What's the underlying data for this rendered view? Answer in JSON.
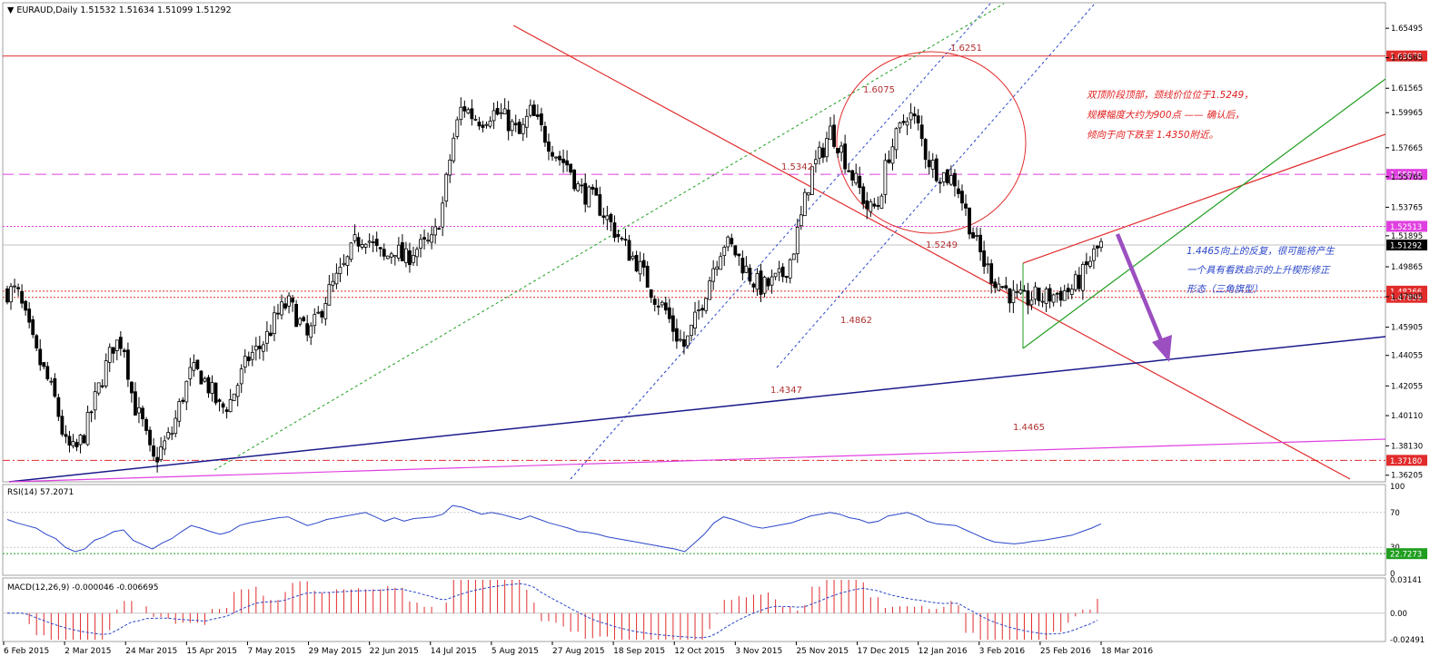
{
  "chart_data": [
    {
      "type": "candlestick",
      "title": "EURAUD,Daily",
      "ohlc_header": [
        "1.51532",
        "1.51634",
        "1.51099",
        "1.51292"
      ],
      "ylim": [
        1.3595,
        1.6705
      ],
      "price_ticks": [
        "1.65495",
        "1.63565",
        "1.61565",
        "1.59965",
        "1.57665",
        "1.55765",
        "1.53765",
        "1.51895",
        "1.49865",
        "1.47905",
        "1.45905",
        "1.44055",
        "1.42055",
        "1.40110",
        "1.38130",
        "1.36205"
      ],
      "x_labels": [
        "6 Feb 2015",
        "2 Mar 2015",
        "24 Mar 2015",
        "15 Apr 2015",
        "7 May 2015",
        "29 May 2015",
        "22 Jun 2015",
        "14 Jul 2015",
        "5 Aug 2015",
        "27 Aug 2015",
        "18 Sep 2015",
        "12 Oct 2015",
        "3 Nov 2015",
        "25 Nov 2015",
        "17 Dec 2015",
        "12 Jan 2016",
        "3 Feb 2016",
        "25 Feb 2016",
        "18 Mar 2016"
      ],
      "close_series": [
        1.4825,
        1.4825,
        1.462,
        1.441,
        1.427,
        1.41,
        1.382,
        1.377,
        1.39,
        1.41,
        1.43,
        1.448,
        1.45,
        1.41,
        1.395,
        1.37,
        1.38,
        1.39,
        1.412,
        1.43,
        1.428,
        1.418,
        1.405,
        1.41,
        1.425,
        1.44,
        1.445,
        1.455,
        1.468,
        1.475,
        1.465,
        1.452,
        1.464,
        1.48,
        1.49,
        1.5,
        1.515,
        1.52,
        1.51,
        1.503,
        1.512,
        1.502,
        1.51,
        1.512,
        1.515,
        1.54,
        1.58,
        1.605,
        1.598,
        1.595,
        1.6,
        1.598,
        1.592,
        1.584,
        1.6,
        1.59,
        1.58,
        1.57,
        1.565,
        1.55,
        1.545,
        1.54,
        1.53,
        1.52,
        1.51,
        1.502,
        1.49,
        1.478,
        1.47,
        1.455,
        1.446,
        1.462,
        1.48,
        1.5,
        1.515,
        1.51,
        1.5,
        1.49,
        1.485,
        1.488,
        1.492,
        1.505,
        1.53,
        1.56,
        1.572,
        1.588,
        1.578,
        1.562,
        1.55,
        1.535,
        1.54,
        1.572,
        1.585,
        1.6,
        1.592,
        1.57,
        1.562,
        1.558,
        1.555,
        1.535,
        1.515,
        1.5,
        1.49,
        1.485,
        1.478,
        1.476,
        1.479,
        1.478,
        1.48,
        1.482,
        1.484,
        1.492,
        1.505,
        1.5129
      ],
      "horizontal_levels": [
        {
          "value": 1.63678,
          "label": "1.63678",
          "color": "#e12c2c",
          "style": "solid"
        },
        {
          "value": 1.55919,
          "label": "1.55919",
          "color": "#e040e0",
          "style": "dashed"
        },
        {
          "value": 1.52513,
          "label": "1.52513",
          "color": "#e040e0",
          "style": "dotted"
        },
        {
          "value": 1.51292,
          "label": "1.51292",
          "color": "#000000",
          "style": "current"
        },
        {
          "value": 1.48266,
          "label": "1.48266",
          "color": "#e12c2c",
          "style": "dotted"
        },
        {
          "value": 1.47859,
          "label": "1.47859",
          "color": "#e12c2c",
          "style": "dotted"
        },
        {
          "value": 1.3718,
          "label": "1.37180",
          "color": "#e12c2c",
          "style": "dashdot"
        }
      ],
      "price_annotations": [
        "1.6251",
        "1.6075",
        "1.5342",
        "1.5249",
        "1.4862",
        "1.4347",
        "1.4465"
      ]
    },
    {
      "type": "line",
      "title": "RSI(14) 57.2071",
      "ylim": [
        0,
        100
      ],
      "ticks": [
        "100",
        "70",
        "30",
        "0"
      ],
      "level_label": "22.7273",
      "values": [
        62,
        58,
        55,
        52,
        45,
        40,
        30,
        25,
        28,
        38,
        42,
        48,
        50,
        38,
        33,
        28,
        35,
        40,
        48,
        55,
        52,
        48,
        45,
        48,
        55,
        58,
        60,
        62,
        64,
        65,
        60,
        55,
        58,
        62,
        64,
        66,
        68,
        70,
        65,
        60,
        64,
        60,
        63,
        64,
        65,
        68,
        78,
        76,
        72,
        68,
        70,
        68,
        65,
        62,
        66,
        62,
        58,
        55,
        52,
        48,
        47,
        45,
        42,
        40,
        38,
        36,
        34,
        32,
        30,
        28,
        25,
        35,
        45,
        58,
        65,
        62,
        58,
        54,
        52,
        54,
        56,
        58,
        62,
        66,
        68,
        70,
        68,
        64,
        62,
        58,
        60,
        66,
        68,
        70,
        66,
        60,
        57,
        56,
        55,
        50,
        45,
        40,
        36,
        35,
        34,
        35,
        37,
        38,
        40,
        42,
        44,
        48,
        52,
        57
      ]
    },
    {
      "type": "bar",
      "title": "MACD(12,26,9) -0.000046 -0.006695",
      "ticks": [
        "0.03141",
        "0.00",
        "-0.02491"
      ]
    }
  ],
  "annotations": {
    "main": [
      "双顶阶段顶部，颈线价位位于1.5249，",
      "规模幅度大约为900点 —— 确认后，",
      "倾向于向下跌至 1.4350附近。"
    ],
    "blue": [
      "1.4465向上的反复，很可能将产生",
      "一个具有看跌启示的上升楔形修正",
      "形态（三角旗型）"
    ]
  },
  "colors": {
    "candle": "#000000",
    "resistance": "#e12c2c",
    "magenta": "#e040e0",
    "support_blue": "#1a1a8c",
    "channel_blue": "#2b46c9",
    "green": "#1f9e1f",
    "arrow": "#9b4fc0",
    "rsi": "#2b46c9",
    "macd_hist": "#e12c2c",
    "macd_signal": "#2b46c9"
  }
}
